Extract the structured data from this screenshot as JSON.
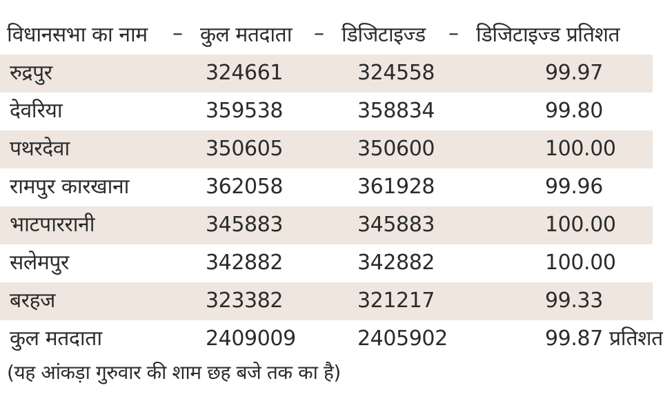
{
  "header": {
    "col_name": "विधानसभा का नाम",
    "sep1": "–",
    "col_total": "कुल मतदाता",
    "sep2": "–",
    "col_digitized": "डिजिटाइज्ड",
    "sep3": "–",
    "col_percent": "डिजिटाइज्ड प्रतिशत"
  },
  "rows": [
    {
      "name": "रुद्रपुर",
      "total": "324661",
      "digitized": "324558",
      "percent": "99.97",
      "shaded": true
    },
    {
      "name": "देवरिया",
      "total": "359538",
      "digitized": "358834",
      "percent": "99.80",
      "shaded": false
    },
    {
      "name": "पथरदेवा",
      "total": "350605",
      "digitized": "350600",
      "percent": "100.00",
      "shaded": true
    },
    {
      "name": "रामपुर कारखाना",
      "total": "362058",
      "digitized": "361928",
      "percent": "99.96",
      "shaded": false
    },
    {
      "name": "भाटपाररानी",
      "total": "345883",
      "digitized": "345883",
      "percent": "100.00",
      "shaded": true
    },
    {
      "name": "सलेमपुर",
      "total": "342882",
      "digitized": "342882",
      "percent": "100.00",
      "shaded": false
    },
    {
      "name": "बरहज",
      "total": "323382",
      "digitized": "321217",
      "percent": "99.33",
      "shaded": true
    },
    {
      "name": "कुल मतदाता",
      "total": "2409009",
      "digitized": "2405902",
      "percent": "99.87 प्रतिशत",
      "shaded": false
    }
  ],
  "footnote": "(यह आंकड़ा गुरुवार की शाम छह बजे तक का है)",
  "colors": {
    "shaded_row": "#efe7df",
    "text": "#2b2b2b"
  }
}
